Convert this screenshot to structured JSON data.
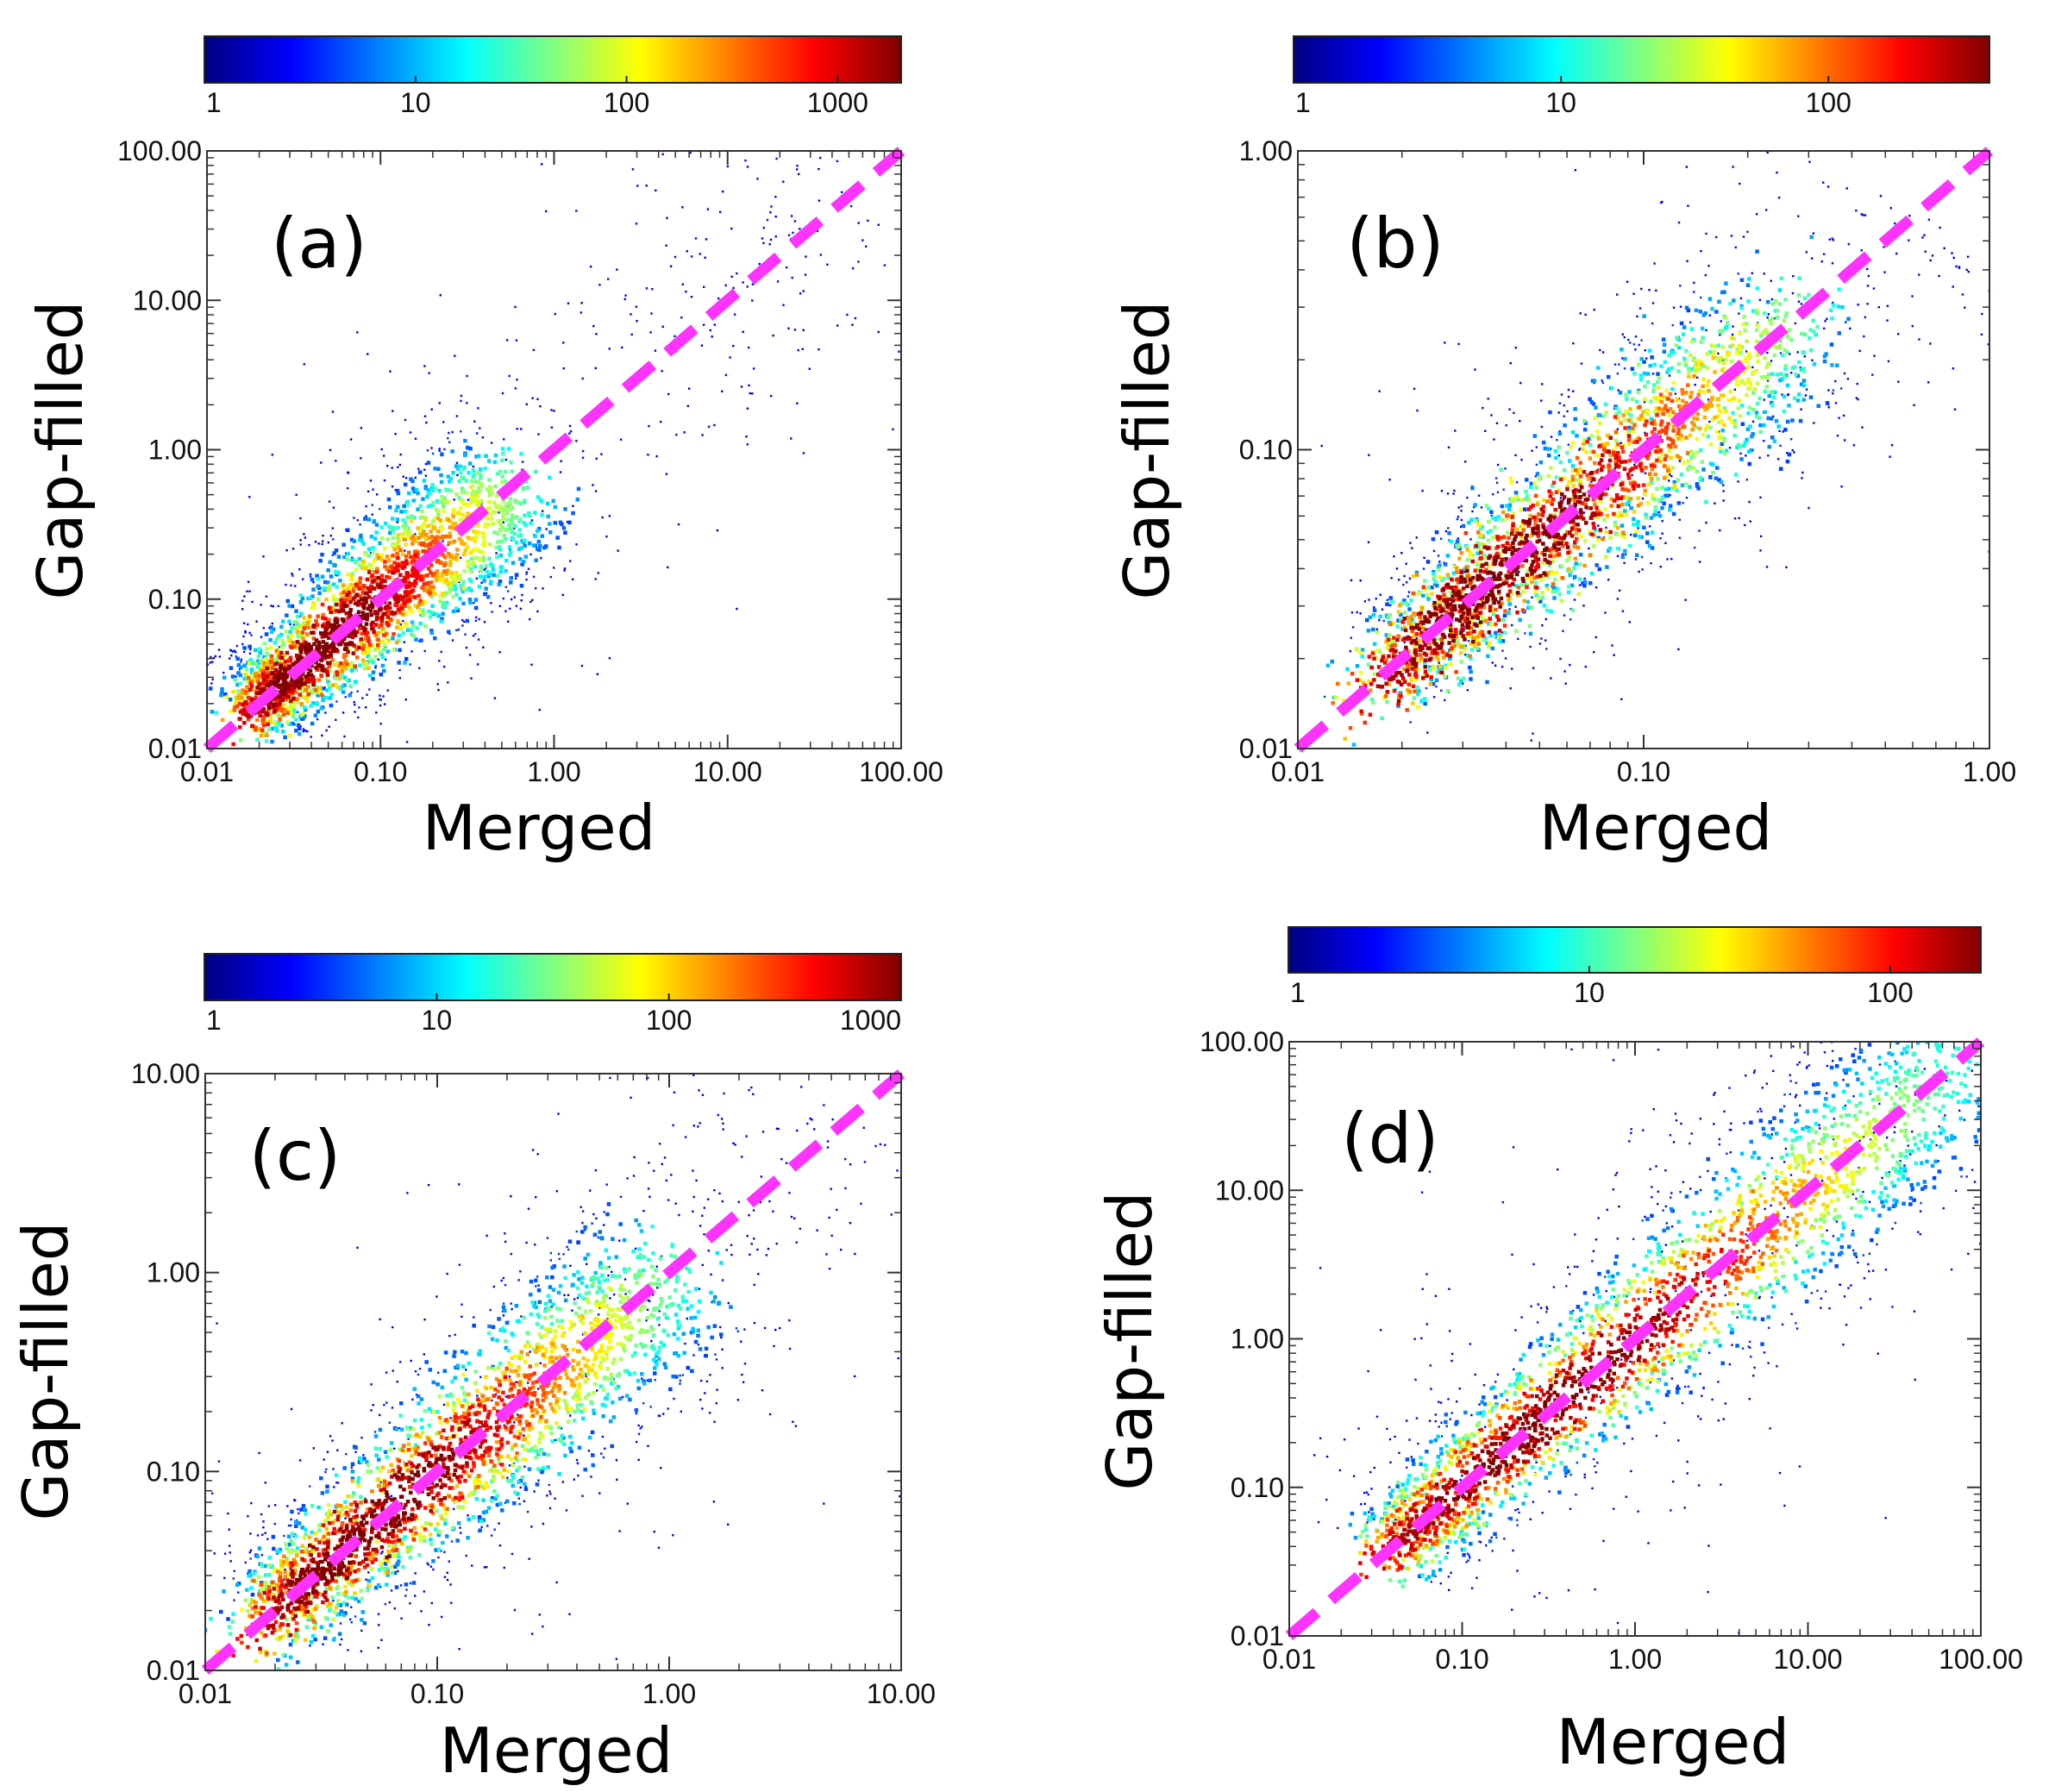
{
  "colors": {
    "identity_line": "#ff33ff",
    "colormap": [
      "#00007f",
      "#0000ff",
      "#0080ff",
      "#00ffff",
      "#80ff80",
      "#ffff00",
      "#ff8000",
      "#ff0000",
      "#7f0000"
    ]
  },
  "chart_data": [
    {
      "type": "heatmap",
      "panel_label": "(a)",
      "xlabel": "Merged",
      "ylabel": "Gap-filled",
      "xlim": [
        0.01,
        100
      ],
      "ylim": [
        0.01,
        100
      ],
      "log_x": true,
      "log_y": true,
      "x_ticks": [
        "0.01",
        "0.10",
        "1.00",
        "10.00",
        "100.00"
      ],
      "y_ticks": [
        "0.01",
        "0.10",
        "1.00",
        "10.00",
        "100.00"
      ],
      "colorbar": {
        "scale": "log",
        "range": [
          1,
          2000
        ],
        "ticks": [
          "1",
          "10",
          "100",
          "1000"
        ]
      },
      "identity_line": true,
      "density_core": [
        0.02,
        0.6
      ],
      "spread_decades": 0.35
    },
    {
      "type": "heatmap",
      "panel_label": "(b)",
      "xlabel": "Merged",
      "ylabel": "Gap-filled",
      "xlim": [
        0.01,
        1
      ],
      "ylim": [
        0.01,
        1
      ],
      "log_x": true,
      "log_y": true,
      "x_ticks": [
        "0.01",
        "0.10",
        "1.00"
      ],
      "y_ticks": [
        "0.01",
        "0.10",
        "1.00"
      ],
      "colorbar": {
        "scale": "log",
        "range": [
          1,
          400
        ],
        "ticks": [
          "1",
          "10",
          "100"
        ]
      },
      "identity_line": true,
      "density_core": [
        0.02,
        0.25
      ],
      "spread_decades": 0.18
    },
    {
      "type": "heatmap",
      "panel_label": "(c)",
      "xlabel": "Merged",
      "ylabel": "Gap-filled",
      "xlim": [
        0.01,
        10
      ],
      "ylim": [
        0.01,
        10
      ],
      "log_x": true,
      "log_y": true,
      "x_ticks": [
        "0.01",
        "0.10",
        "1.00",
        "10.00"
      ],
      "y_ticks": [
        "0.01",
        "0.10",
        "1.00",
        "10.00"
      ],
      "colorbar": {
        "scale": "log",
        "range": [
          1,
          1000
        ],
        "ticks": [
          "1",
          "10",
          "100",
          "1000"
        ]
      },
      "identity_line": true,
      "density_core": [
        0.02,
        1
      ],
      "spread_decades": 0.3
    },
    {
      "type": "heatmap",
      "panel_label": "(d)",
      "xlabel": "Merged",
      "ylabel": "Gap-filled",
      "xlim": [
        0.01,
        100
      ],
      "ylim": [
        0.01,
        100
      ],
      "log_x": true,
      "log_y": true,
      "x_ticks": [
        "0.01",
        "0.10",
        "1.00",
        "10.00",
        "100.00"
      ],
      "y_ticks": [
        "0.01",
        "0.10",
        "1.00",
        "10.00",
        "100.00"
      ],
      "colorbar": {
        "scale": "log",
        "range": [
          1,
          200
        ],
        "ticks": [
          "1",
          "10",
          "100"
        ]
      },
      "identity_line": true,
      "density_core": [
        0.04,
        90
      ],
      "spread_decades": 0.4
    }
  ]
}
